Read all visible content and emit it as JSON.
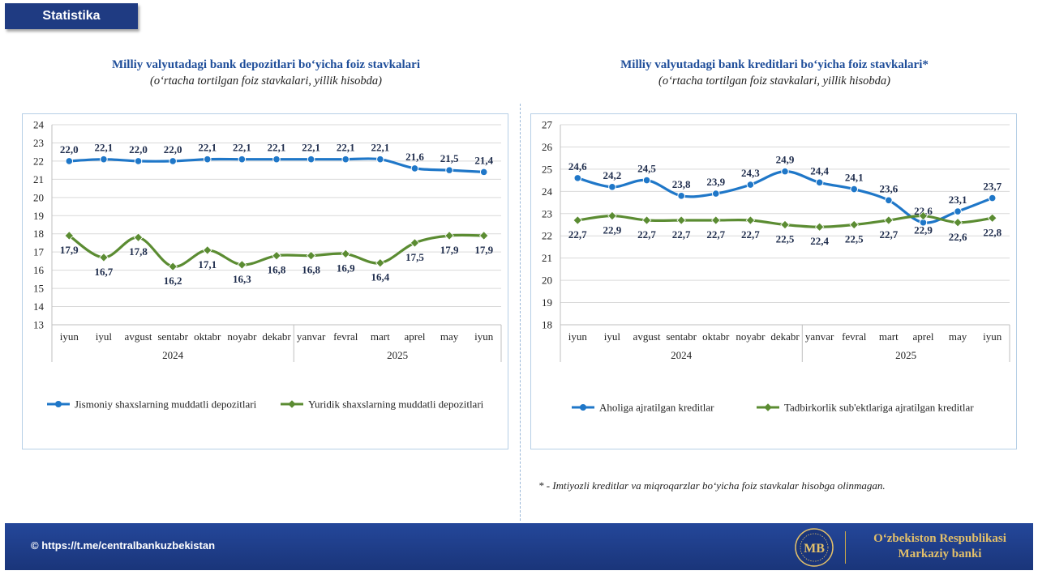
{
  "header": {
    "badge": "Statistika"
  },
  "left": {
    "title": "Milliy valyutadagi bank depozitlari bo‘yicha foiz stavkalari",
    "subtitle": "(o‘rtacha tortilgan foiz stavkalari, yillik hisobda)"
  },
  "right": {
    "title": "Milliy valyutadagi bank kreditlari bo‘yicha foiz stavkalari*",
    "subtitle": "(o‘rtacha tortilgan foiz stavkalari, yillik hisobda)"
  },
  "footnote": "* - Imtiyozli kreditlar va miqroqarzlar bo‘yicha foiz stavkalar hisobga olinmagan.",
  "footer": {
    "link": "© https://t.me/centralbankuzbekistan",
    "org_line1": "O‘zbekiston Respublikasi",
    "org_line2": "Markaziy banki"
  },
  "colors": {
    "blue": "#1f77c8",
    "green": "#5b8c32",
    "brand": "#1f3b82",
    "gold": "#e3c06a"
  },
  "icons": {
    "logo": "cbu-logo-icon"
  },
  "chart_data": [
    {
      "type": "line",
      "categories": [
        "iyun",
        "iyul",
        "avgust",
        "sentabr",
        "oktabr",
        "noyabr",
        "dekabr",
        "yanvar",
        "fevral",
        "mart",
        "aprel",
        "may",
        "iyun"
      ],
      "groups": [
        {
          "label": "2024",
          "start": 0,
          "end": 6
        },
        {
          "label": "2025",
          "start": 7,
          "end": 12
        }
      ],
      "ylim": [
        13,
        24
      ],
      "yticks": [
        13,
        14,
        15,
        16,
        17,
        18,
        19,
        20,
        21,
        22,
        23,
        24
      ],
      "legend": "bottom",
      "grid": true,
      "series": [
        {
          "name": "Jismoniy shaxslarning muddatli depozitlari",
          "color": "#1f77c8",
          "marker": "circle",
          "label_pos": "above",
          "values": [
            22.0,
            22.1,
            22.0,
            22.0,
            22.1,
            22.1,
            22.1,
            22.1,
            22.1,
            22.1,
            21.6,
            21.5,
            21.4
          ],
          "labels": [
            "22,0",
            "22,1",
            "22,0",
            "22,0",
            "22,1",
            "22,1",
            "22,1",
            "22,1",
            "22,1",
            "22,1",
            "21,6",
            "21,5",
            "21,4"
          ]
        },
        {
          "name": "Yuridik shaxslarning muddatli depozitlari",
          "color": "#5b8c32",
          "marker": "diamond",
          "label_pos": "below",
          "values": [
            17.9,
            16.7,
            17.8,
            16.2,
            17.1,
            16.3,
            16.8,
            16.8,
            16.9,
            16.4,
            17.5,
            17.9,
            17.9
          ],
          "labels": [
            "17,9",
            "16,7",
            "17,8",
            "16,2",
            "17,1",
            "16,3",
            "16,8",
            "16,8",
            "16,9",
            "16,4",
            "17,5",
            "17,9",
            "17,9"
          ]
        }
      ]
    },
    {
      "type": "line",
      "categories": [
        "iyun",
        "iyul",
        "avgust",
        "sentabr",
        "oktabr",
        "noyabr",
        "dekabr",
        "yanvar",
        "fevral",
        "mart",
        "aprel",
        "may",
        "iyun"
      ],
      "groups": [
        {
          "label": "2024",
          "start": 0,
          "end": 6
        },
        {
          "label": "2025",
          "start": 7,
          "end": 12
        }
      ],
      "ylim": [
        18,
        27
      ],
      "yticks": [
        18,
        19,
        20,
        21,
        22,
        23,
        24,
        25,
        26,
        27
      ],
      "legend": "bottom",
      "grid": true,
      "series": [
        {
          "name": "Aholiga ajratilgan kreditlar",
          "color": "#1f77c8",
          "marker": "circle",
          "label_pos": "above",
          "values": [
            24.6,
            24.2,
            24.5,
            23.8,
            23.9,
            24.3,
            24.9,
            24.4,
            24.1,
            23.6,
            22.6,
            23.1,
            23.7
          ],
          "labels": [
            "24,6",
            "24,2",
            "24,5",
            "23,8",
            "23,9",
            "24,3",
            "24,9",
            "24,4",
            "24,1",
            "23,6",
            "22,6",
            "23,1",
            "23,7"
          ]
        },
        {
          "name": "Tadbirkorlik sub'ektlariga ajratilgan kreditlar",
          "color": "#5b8c32",
          "marker": "diamond",
          "label_pos": "below",
          "values": [
            22.7,
            22.9,
            22.7,
            22.7,
            22.7,
            22.7,
            22.5,
            22.4,
            22.5,
            22.7,
            22.9,
            22.6,
            22.8
          ],
          "labels": [
            "22,7",
            "22,9",
            "22,7",
            "22,7",
            "22,7",
            "22,7",
            "22,5",
            "22,4",
            "22,5",
            "22,7",
            "22,9",
            "22,6",
            "22,8"
          ]
        }
      ]
    }
  ]
}
